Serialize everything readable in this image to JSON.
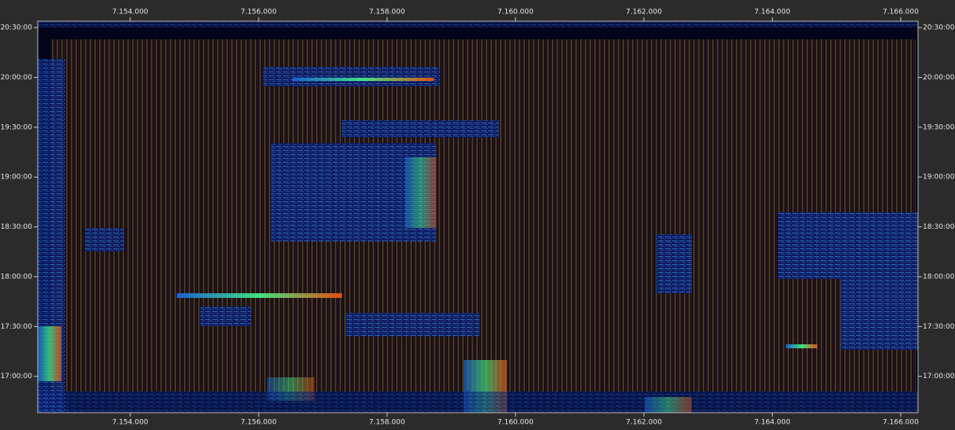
{
  "chart_data": {
    "type": "spectrogram",
    "xlim": [
      7152560,
      7166270
    ],
    "xticks": [
      {
        "value": 7154000,
        "label": "7.154.000"
      },
      {
        "value": 7156000,
        "label": "7.156.000"
      },
      {
        "value": 7158000,
        "label": "7.158.000"
      },
      {
        "value": 7160000,
        "label": "7.160.000"
      },
      {
        "value": 7162000,
        "label": "7.162.000"
      },
      {
        "value": 7164000,
        "label": "7.164.000"
      },
      {
        "value": 7166000,
        "label": "7.166.000"
      }
    ],
    "ylim": [
      59886,
      74030
    ],
    "yticks": [
      {
        "value": 61200,
        "label": "17:00:00"
      },
      {
        "value": 63000,
        "label": "17:30:00"
      },
      {
        "value": 64800,
        "label": "18:00:00"
      },
      {
        "value": 66600,
        "label": "18:30:00"
      },
      {
        "value": 68400,
        "label": "19:00:00"
      },
      {
        "value": 70200,
        "label": "19:30:00"
      },
      {
        "value": 72000,
        "label": "20:00:00"
      },
      {
        "value": 73800,
        "label": "20:30:00"
      }
    ]
  }
}
